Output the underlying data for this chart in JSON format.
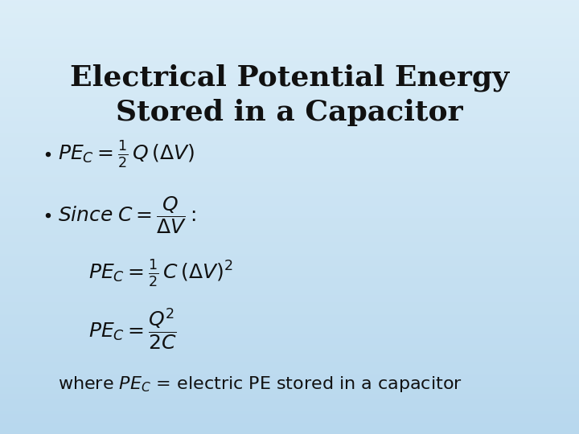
{
  "title_line1": "Electrical Potential Energy",
  "title_line2": "Stored in a Capacitor",
  "title_fontsize": 26,
  "title_color": "#111111",
  "bg_color": "#cce8f4",
  "formula_color": "#111111",
  "bullet_color": "#111111",
  "eq1": "$PE_C = \\frac{1}{2}\\, Q\\,(\\Delta V)$",
  "eq2_since": "$Since\\; C = \\dfrac{Q}{\\Delta V}:$",
  "eq3": "$PE_C = \\frac{1}{2}\\, C\\,(\\Delta V)^2$",
  "eq4": "$PE_C = \\dfrac{Q^2}{2C}$",
  "eq5_where": "where $PE_C$ = electric PE stored in a capacitor",
  "math_fontsize": 18,
  "where_fontsize": 16
}
